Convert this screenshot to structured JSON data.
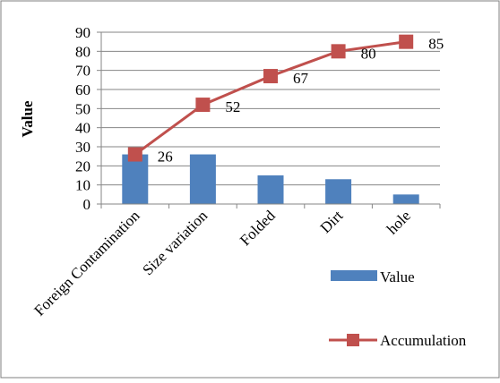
{
  "chart_data": {
    "type": "bar",
    "categories": [
      "Foreign Contamination",
      "Size variation",
      "Folded",
      "Dirt",
      "hole"
    ],
    "series": [
      {
        "name": "Value",
        "type": "bar",
        "values": [
          26,
          26,
          15,
          13,
          5
        ],
        "color": "#4F81BD"
      },
      {
        "name": "Accumulation",
        "type": "line",
        "values": [
          26,
          52,
          67,
          80,
          85
        ],
        "color": "#C0504D",
        "data_labels": [
          "26",
          "52",
          "67",
          "80",
          "85"
        ]
      }
    ],
    "ylabel": "Value",
    "ylim": [
      0,
      90
    ],
    "yticks": [
      0,
      10,
      20,
      30,
      40,
      50,
      60,
      70,
      80,
      90
    ],
    "grid": true,
    "legend_position": "right"
  },
  "legend": {
    "value_label": "Value",
    "accumulation_label": "Accumulation"
  }
}
